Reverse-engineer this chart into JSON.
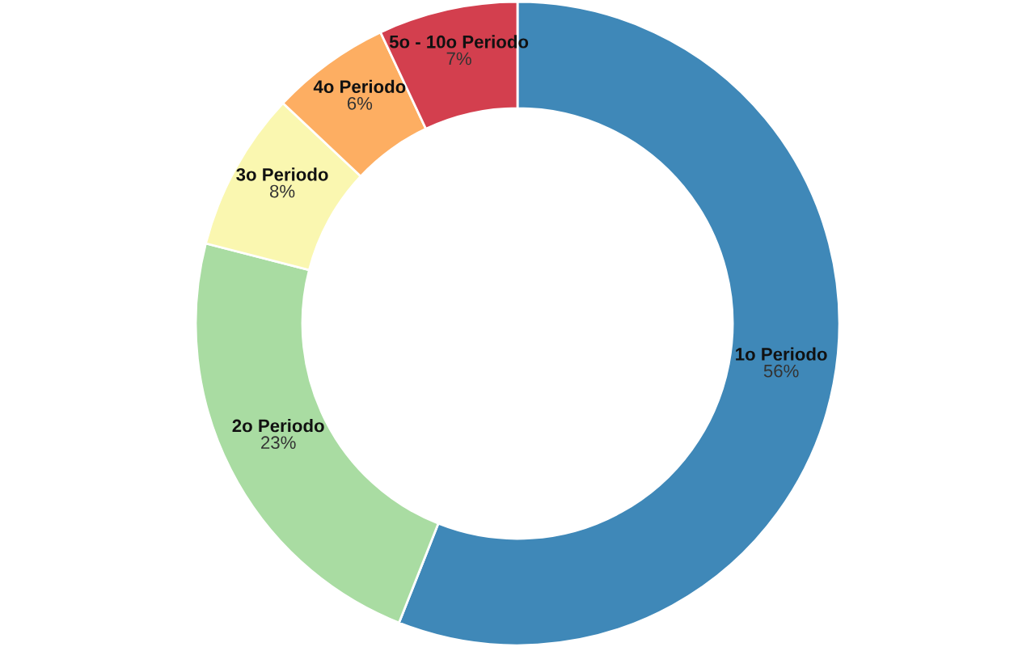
{
  "chart_data": {
    "type": "donut",
    "categories": [
      "1o Periodo",
      "2o Periodo",
      "3o Periodo",
      "4o Periodo",
      "5o - 10o Periodo"
    ],
    "values": [
      56,
      23,
      8,
      6,
      7
    ],
    "value_labels": [
      "56%",
      "23%",
      "8%",
      "6%",
      "7%"
    ],
    "colors": [
      "#3f88b8",
      "#a9dca2",
      "#faf7b0",
      "#fdae62",
      "#d33f4e"
    ],
    "legend": false
  }
}
